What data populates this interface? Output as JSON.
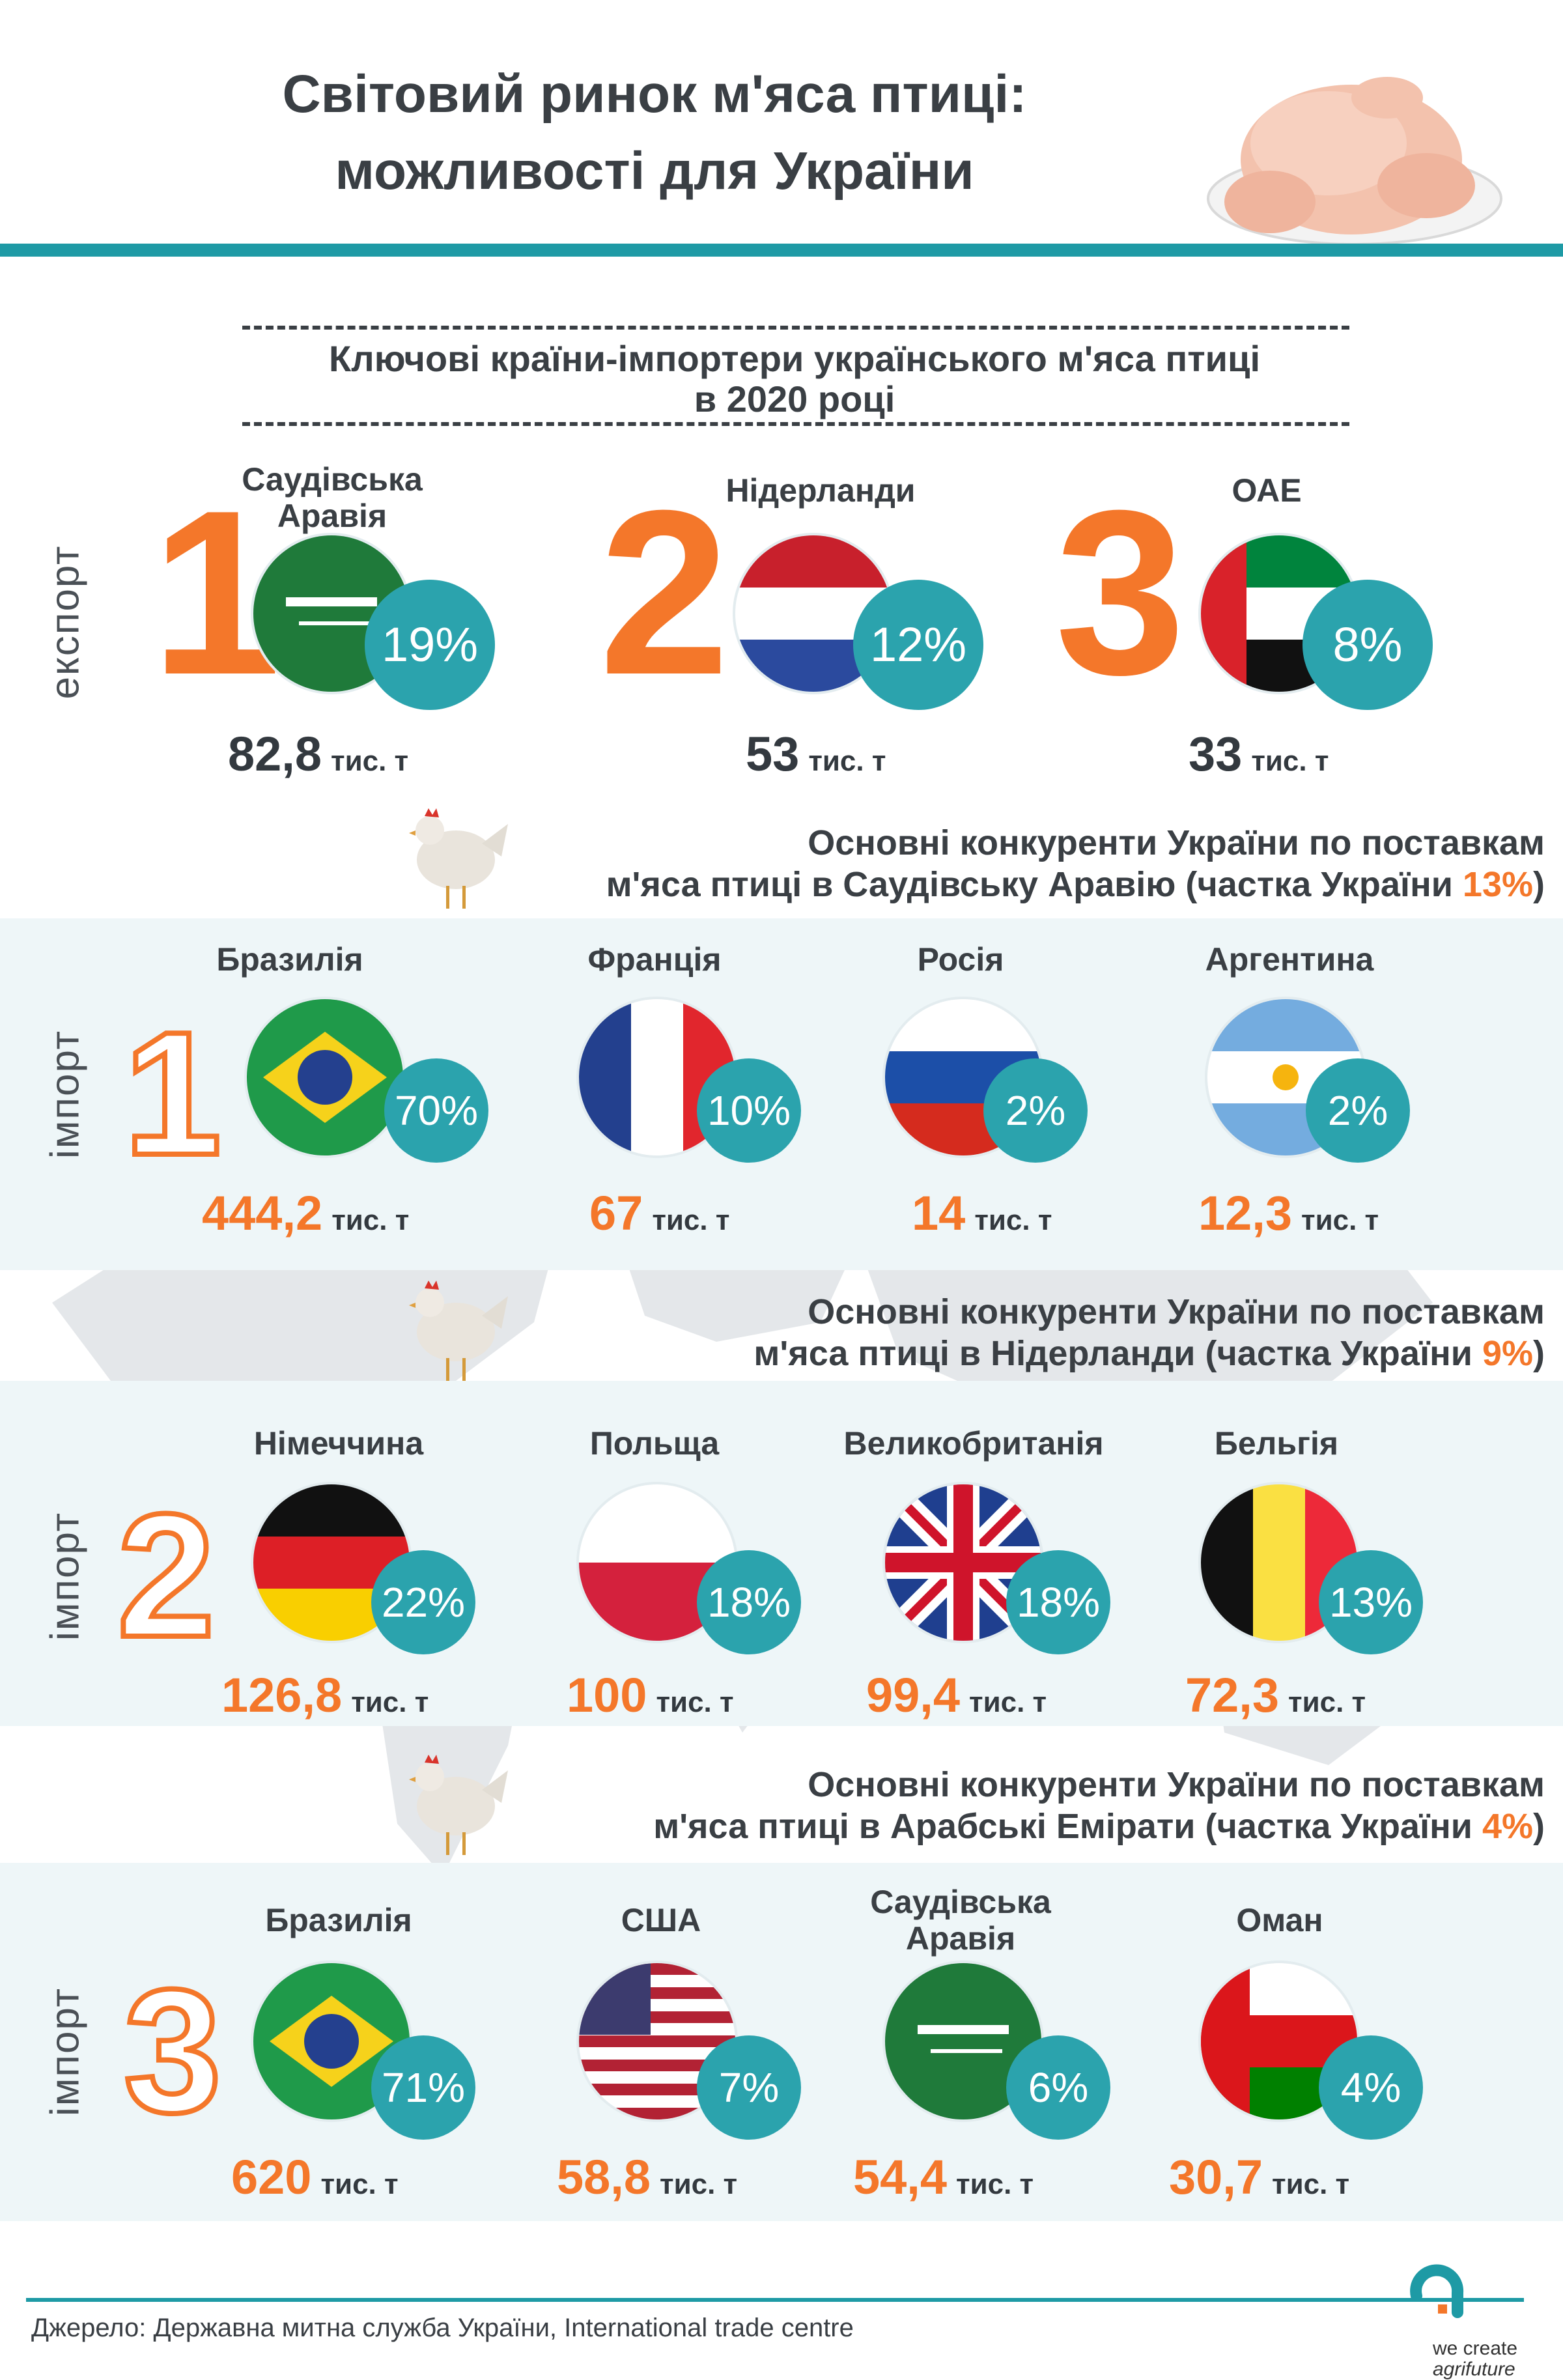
{
  "header": {
    "title_line1": "Світовий ринок м'яса птиці:",
    "title_line2": "можливості для України"
  },
  "export_section": {
    "title_line1": "Ключові країни-імпортери українського м'яса птиці",
    "title_line2": "в 2020 році",
    "side_label": "експорт",
    "items": [
      {
        "rank": "1",
        "country_line1": "Саудівська",
        "country_line2": "Аравія",
        "share": "19%",
        "value": "82,8",
        "unit": "тис. т",
        "flag": "saudi-arabia-flag-icon"
      },
      {
        "rank": "2",
        "country_line1": "Нідерланди",
        "country_line2": "",
        "share": "12%",
        "value": "53",
        "unit": "тис. т",
        "flag": "netherlands-flag-icon"
      },
      {
        "rank": "3",
        "country_line1": "ОАЕ",
        "country_line2": "",
        "share": "8%",
        "value": "33",
        "unit": "тис. т",
        "flag": "uae-flag-icon"
      }
    ]
  },
  "import_sections": [
    {
      "heading_line1": "Основні конкуренти України по поставкам",
      "heading_line2_prefix": "м'яса птиці в Саудівську Аравію (частка України ",
      "heading_share": "13%",
      "heading_line2_suffix": ")",
      "side_label": "імпорт",
      "number": "1",
      "countries": [
        {
          "name_line1": "Бразилія",
          "name_line2": "",
          "share": "70%",
          "value": "444,2",
          "unit": "тис. т",
          "flag": "brazil-flag-icon"
        },
        {
          "name_line1": "Франція",
          "name_line2": "",
          "share": "10%",
          "value": "67",
          "unit": "тис. т",
          "flag": "france-flag-icon"
        },
        {
          "name_line1": "Росія",
          "name_line2": "",
          "share": "2%",
          "value": "14",
          "unit": "тис. т",
          "flag": "russia-flag-icon"
        },
        {
          "name_line1": "Аргентина",
          "name_line2": "",
          "share": "2%",
          "value": "12,3",
          "unit": "тис. т",
          "flag": "argentina-flag-icon"
        }
      ]
    },
    {
      "heading_line1": "Основні конкуренти України по поставкам",
      "heading_line2_prefix": "м'яса птиці в Нідерланди (частка України ",
      "heading_share": "9%",
      "heading_line2_suffix": ")",
      "side_label": "імпорт",
      "number": "2",
      "countries": [
        {
          "name_line1": "Німеччина",
          "name_line2": "",
          "share": "22%",
          "value": "126,8",
          "unit": "тис. т",
          "flag": "germany-flag-icon"
        },
        {
          "name_line1": "Польща",
          "name_line2": "",
          "share": "18%",
          "value": "100",
          "unit": "тис. т",
          "flag": "poland-flag-icon"
        },
        {
          "name_line1": "Великобританія",
          "name_line2": "",
          "share": "18%",
          "value": "99,4",
          "unit": "тис. т",
          "flag": "uk-flag-icon"
        },
        {
          "name_line1": "Бельгія",
          "name_line2": "",
          "share": "13%",
          "value": "72,3",
          "unit": "тис. т",
          "flag": "belgium-flag-icon"
        }
      ]
    },
    {
      "heading_line1": "Основні конкуренти України по поставкам",
      "heading_line2_prefix": "м'яса птиці в Арабські Емірати  (частка України ",
      "heading_share": "4%",
      "heading_line2_suffix": ")",
      "side_label": "імпорт",
      "number": "3",
      "countries": [
        {
          "name_line1": "Бразилія",
          "name_line2": "",
          "share": "71%",
          "value": "620",
          "unit": "тис. т",
          "flag": "brazil-flag-icon"
        },
        {
          "name_line1": "США",
          "name_line2": "",
          "share": "7%",
          "value": "58,8",
          "unit": "тис. т",
          "flag": "usa-flag-icon"
        },
        {
          "name_line1": "Саудівська",
          "name_line2": "Аравія",
          "share": "6%",
          "value": "54,4",
          "unit": "тис. т",
          "flag": "saudi-arabia-flag-icon"
        },
        {
          "name_line1": "Оман",
          "name_line2": "",
          "share": "4%",
          "value": "30,7",
          "unit": "тис. т",
          "flag": "oman-flag-icon"
        }
      ]
    }
  ],
  "footer": {
    "source": "Джерело: Державна митна служба України, International trade centre",
    "logo_line1": "we create",
    "logo_line2": "agrifuture"
  },
  "colors": {
    "accent": "#f4772a",
    "teal": "#2ba3ad",
    "rule": "#1e9aa5",
    "band": "#eef6f8",
    "text": "#3a3f44"
  }
}
